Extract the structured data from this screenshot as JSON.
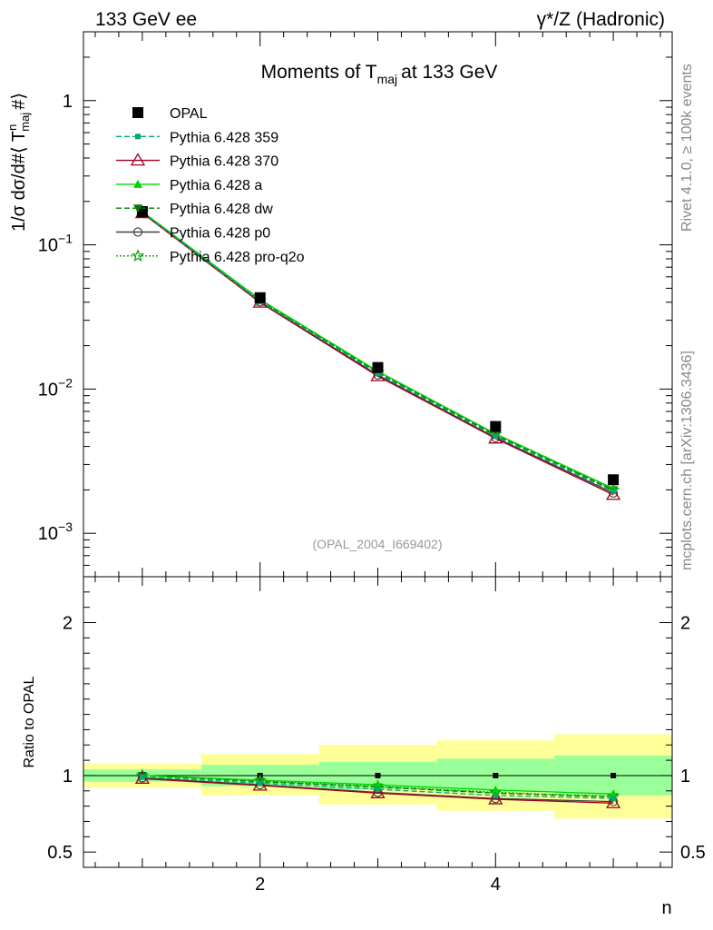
{
  "header": {
    "left": "133 GeV ee",
    "right_prefix": "γ*/Z",
    "right_suffix": "(Hadronic)"
  },
  "side_text": {
    "rivet": "Rivet 4.1.0, ≥ 100k events",
    "mcplots": "mcplots.cern.ch [arXiv:1306.3436]"
  },
  "colors": {
    "opal": "#000000",
    "p359": "#00a87a",
    "p370": "#a0001e",
    "pa": "#00d400",
    "pdw": "#007d00",
    "pp0": "#444444",
    "pq2o": "#00a000",
    "band_inner": "#99ff99",
    "band_outer": "#ffff99"
  },
  "chart_data": [
    {
      "type": "line",
      "title_main": "Moments of T",
      "title_sub": "maj",
      "title_end": "at 133 GeV",
      "ylabel_prefix": "1/σ  dσ/d#⟨ T",
      "ylabel_sup": "n",
      "ylabel_sub": "maj",
      "ylabel_suffix": "#⟩",
      "yscale": "log",
      "ylim": [
        0.0005,
        3
      ],
      "xlim": [
        0.5,
        5.5
      ],
      "yticks": [
        {
          "value": 0.001,
          "base": "10",
          "exp": "−3"
        },
        {
          "value": 0.01,
          "base": "10",
          "exp": "−2"
        },
        {
          "value": 0.1,
          "base": "10",
          "exp": "−1"
        },
        {
          "value": 1,
          "base": "1",
          "exp": ""
        }
      ],
      "watermark": "(OPAL_2004_I669402)",
      "x": [
        1,
        2,
        3,
        4,
        5
      ],
      "series": [
        {
          "key": "opal",
          "name": "OPAL",
          "values": [
            0.17,
            0.043,
            0.0141,
            0.0055,
            0.00235
          ],
          "marker": "square",
          "line": "none"
        },
        {
          "key": "p359",
          "name": "Pythia 6.428 359",
          "values": [
            0.168,
            0.0405,
            0.0128,
            0.0047,
            0.00195
          ],
          "marker": "smallsquare",
          "line": "dashed"
        },
        {
          "key": "p370",
          "name": "Pythia 6.428 370",
          "values": [
            0.166,
            0.0398,
            0.0123,
            0.00455,
            0.00185
          ],
          "marker": "triangle-open",
          "line": "solid"
        },
        {
          "key": "pa",
          "name": "Pythia 6.428 a",
          "values": [
            0.17,
            0.0418,
            0.0133,
            0.0049,
            0.00205
          ],
          "marker": "triangle",
          "line": "solid"
        },
        {
          "key": "pdw",
          "name": "Pythia 6.428 dw",
          "values": [
            0.169,
            0.0412,
            0.013,
            0.0048,
            0.002
          ],
          "marker": "triangle-down",
          "line": "dashed"
        },
        {
          "key": "pp0",
          "name": "Pythia 6.428 p0",
          "values": [
            0.167,
            0.0402,
            0.0125,
            0.0046,
            0.0019
          ],
          "marker": "circle-open",
          "line": "solid"
        },
        {
          "key": "pq2o",
          "name": "Pythia 6.428 pro-q2o",
          "values": [
            0.169,
            0.041,
            0.0131,
            0.00485,
            0.002
          ],
          "marker": "star",
          "line": "dotted"
        }
      ]
    },
    {
      "type": "line",
      "ylabel": "Ratio to OPAL",
      "xlabel": "n",
      "ylim": [
        0.4,
        2.3
      ],
      "xlim": [
        0.5,
        5.5
      ],
      "yticks": [
        0.5,
        1,
        2
      ],
      "ytick_labels": [
        "0.5",
        "1",
        "2"
      ],
      "xticks": [
        2,
        4
      ],
      "xtick_labels": [
        "2",
        "4"
      ],
      "reference": 1,
      "bands": [
        {
          "x0": 0.5,
          "x1": 1.5,
          "inner": [
            0.96,
            1.04
          ],
          "outer": [
            0.92,
            1.08
          ]
        },
        {
          "x0": 1.5,
          "x1": 2.5,
          "inner": [
            0.93,
            1.07
          ],
          "outer": [
            0.87,
            1.14
          ]
        },
        {
          "x0": 2.5,
          "x1": 3.5,
          "inner": [
            0.91,
            1.09
          ],
          "outer": [
            0.81,
            1.2
          ]
        },
        {
          "x0": 3.5,
          "x1": 4.5,
          "inner": [
            0.89,
            1.11
          ],
          "outer": [
            0.77,
            1.23
          ]
        },
        {
          "x0": 4.5,
          "x1": 5.5,
          "inner": [
            0.87,
            1.13
          ],
          "outer": [
            0.72,
            1.27
          ]
        }
      ],
      "series": [
        {
          "key": "p359",
          "values": [
            0.99,
            0.95,
            0.91,
            0.87,
            0.85
          ]
        },
        {
          "key": "p370",
          "values": [
            0.98,
            0.935,
            0.885,
            0.845,
            0.82
          ]
        },
        {
          "key": "pa",
          "values": [
            1.0,
            0.97,
            0.94,
            0.905,
            0.88
          ]
        },
        {
          "key": "pdw",
          "values": [
            1.0,
            0.96,
            0.925,
            0.885,
            0.86
          ]
        },
        {
          "key": "pp0",
          "values": [
            0.985,
            0.94,
            0.89,
            0.85,
            0.83
          ]
        },
        {
          "key": "pq2o",
          "values": [
            1.0,
            0.965,
            0.93,
            0.89,
            0.865
          ]
        }
      ]
    }
  ]
}
